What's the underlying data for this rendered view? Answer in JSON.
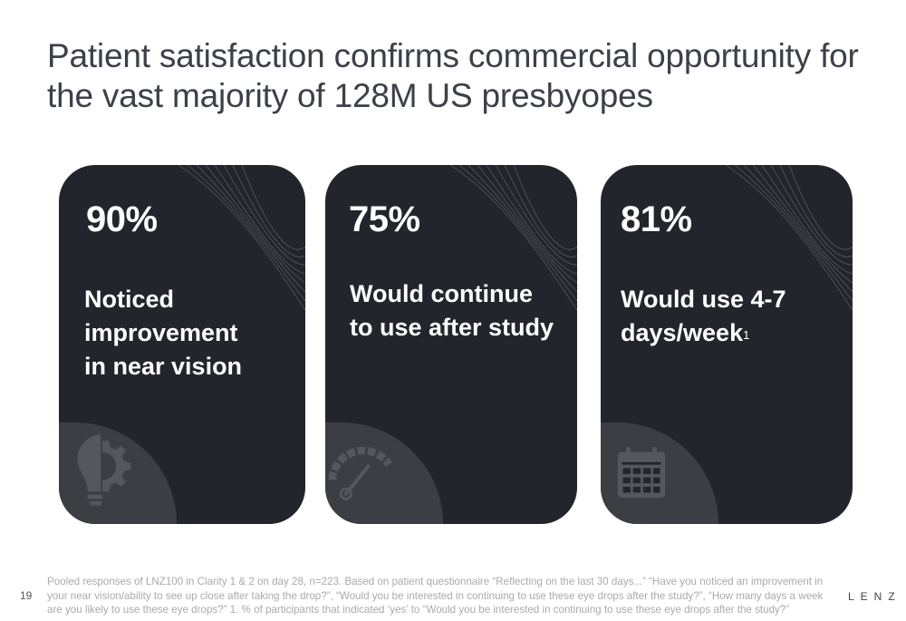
{
  "title": "Patient satisfaction confirms commercial opportunity for the vast majority of 128M US presbyopes",
  "cards": [
    {
      "stat": "90%",
      "desc": "Noticed improvement in near vision",
      "icon": "lightbulb-gear-icon"
    },
    {
      "stat": "75%",
      "desc": "Would continue to use after study",
      "icon": "gauge-icon"
    },
    {
      "stat": "81%",
      "desc": "Would use 4-7 days/week",
      "footnote_mark": "1",
      "icon": "calendar-icon"
    }
  ],
  "footer": {
    "page_number": "19",
    "footnote": "Pooled responses of LNZ100 in Clarity 1 & 2 on day 28, n=223. Based on patient questionnaire “Reflecting on the last 30 days...” “Have you noticed an improvement in your near vision/ability to see up close after taking the drop?”, “Would you be interested in continuing to use these eye drops after the study?”, “How many days a week are you likely to use these eye drops?” 1. % of participants that indicated ‘yes’ to “Would you be interested in continuing to use these eye drops after the study?”",
    "logo": "LENZ"
  },
  "colors": {
    "card_bg": "#22252b",
    "title": "#3d4048",
    "icon_grey": "#55575c"
  }
}
